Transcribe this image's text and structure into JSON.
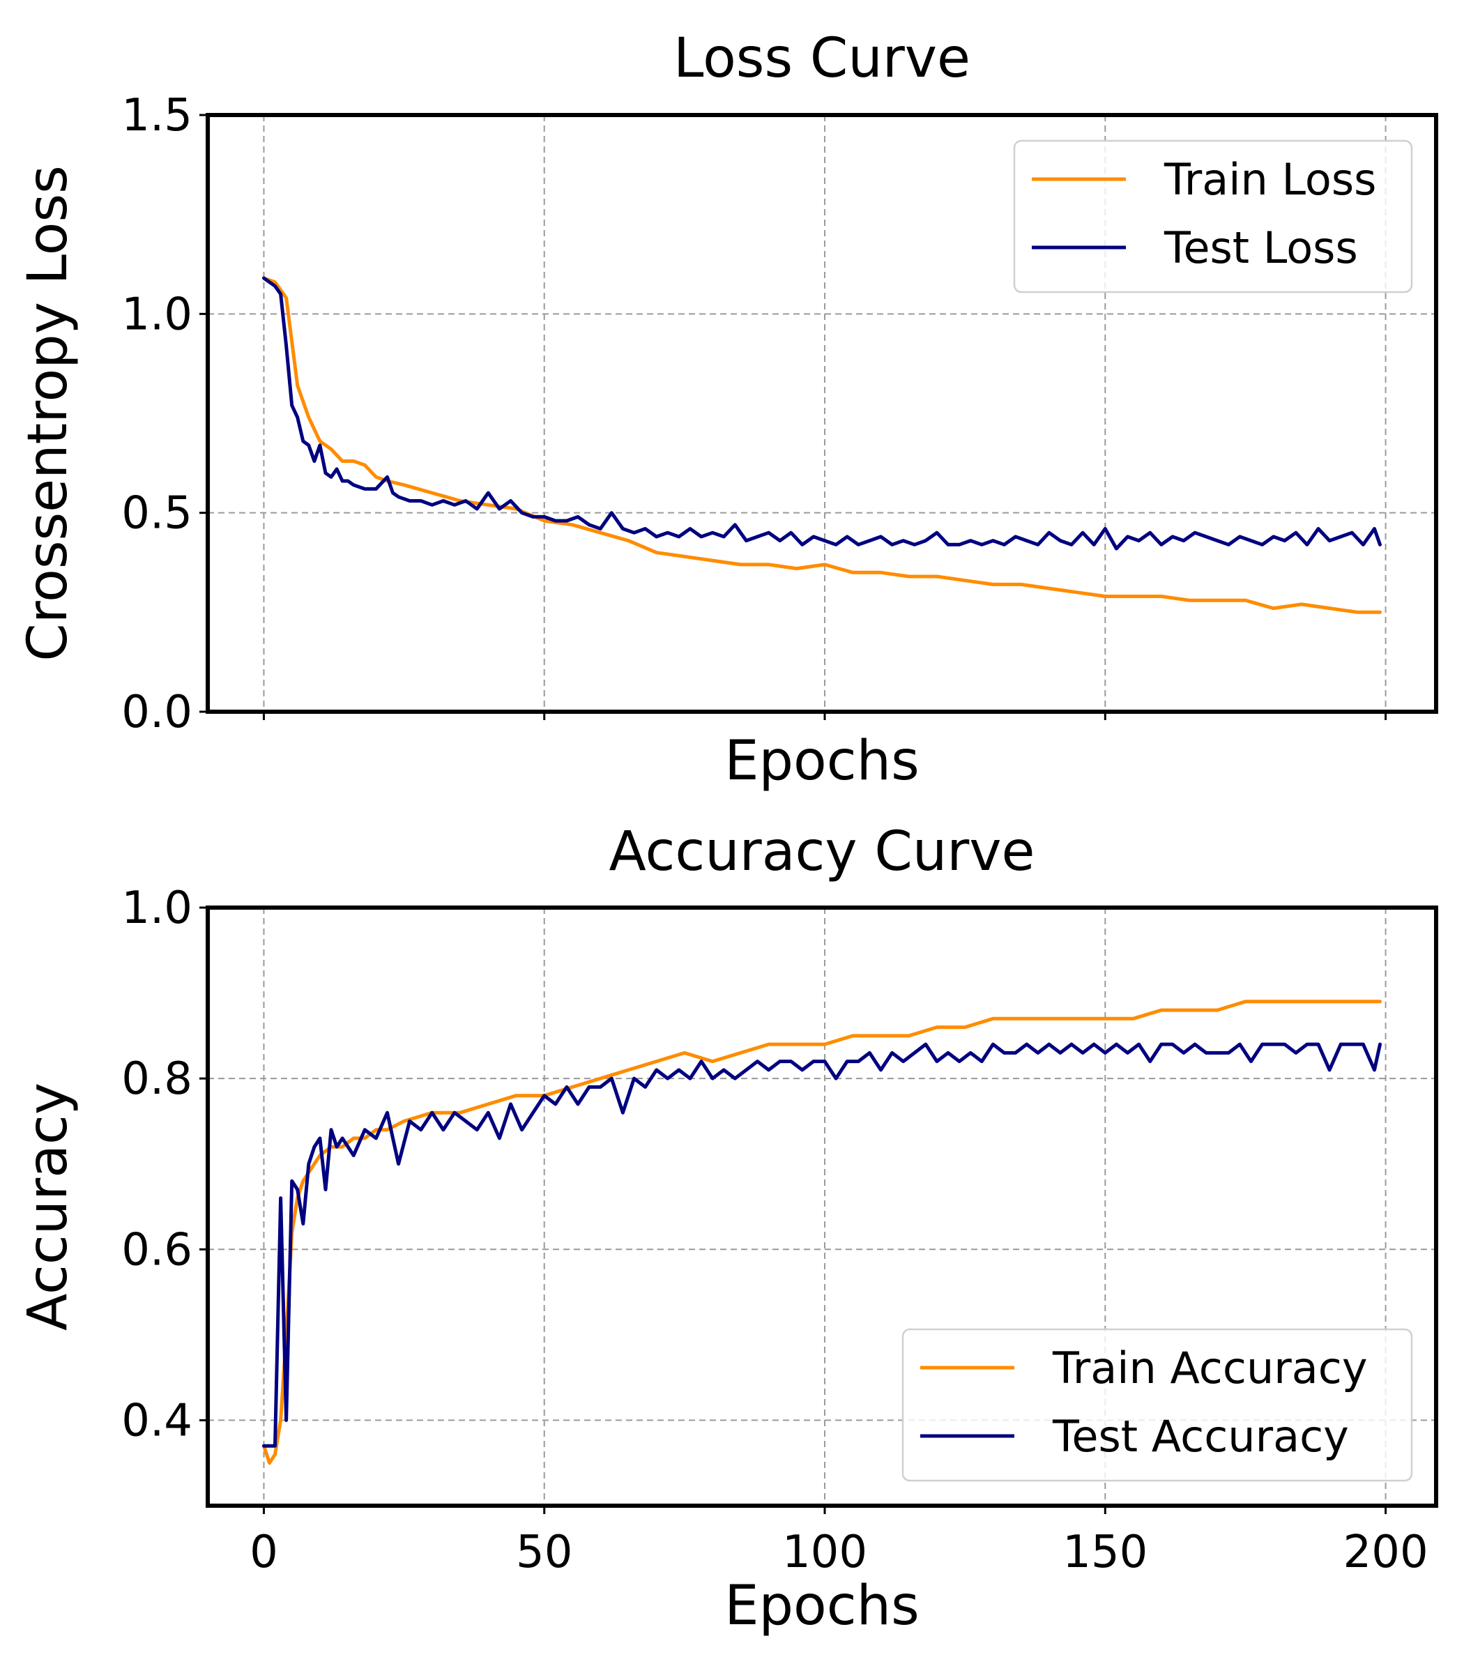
{
  "colors": {
    "train": "#ff8c00",
    "test": "#000080"
  },
  "chart_data": [
    {
      "type": "line",
      "title": "Loss Curve",
      "xlabel": "Epochs",
      "ylabel": "Crossentropy Loss",
      "xlim": [
        -10,
        209
      ],
      "ylim": [
        0.0,
        1.5
      ],
      "yticks": [
        "0.0",
        "0.5",
        "1.0",
        "1.5"
      ],
      "xticks": [
        "0",
        "50",
        "100",
        "150",
        "200"
      ],
      "show_xtick_labels": false,
      "grid": true,
      "legend_position": "top-right",
      "series": [
        {
          "name": "Train Loss",
          "color": "train",
          "x": [
            0,
            2,
            4,
            5,
            6,
            8,
            10,
            12,
            14,
            16,
            18,
            20,
            22,
            25,
            30,
            35,
            40,
            45,
            50,
            55,
            60,
            65,
            70,
            75,
            80,
            85,
            90,
            95,
            100,
            105,
            110,
            115,
            120,
            125,
            130,
            135,
            140,
            145,
            150,
            155,
            160,
            165,
            170,
            175,
            180,
            185,
            190,
            195,
            199
          ],
          "y": [
            1.09,
            1.08,
            1.04,
            0.93,
            0.82,
            0.74,
            0.68,
            0.66,
            0.63,
            0.63,
            0.62,
            0.59,
            0.58,
            0.57,
            0.55,
            0.53,
            0.52,
            0.51,
            0.48,
            0.47,
            0.45,
            0.43,
            0.4,
            0.39,
            0.38,
            0.37,
            0.37,
            0.36,
            0.37,
            0.35,
            0.35,
            0.34,
            0.34,
            0.33,
            0.32,
            0.32,
            0.31,
            0.3,
            0.29,
            0.29,
            0.29,
            0.28,
            0.28,
            0.28,
            0.26,
            0.27,
            0.26,
            0.25,
            0.25
          ]
        },
        {
          "name": "Test Loss",
          "color": "test",
          "x": [
            0,
            2,
            3,
            4,
            5,
            6,
            7,
            8,
            9,
            10,
            11,
            12,
            13,
            14,
            15,
            16,
            18,
            20,
            22,
            23,
            24,
            26,
            28,
            30,
            32,
            34,
            36,
            38,
            40,
            42,
            44,
            46,
            48,
            50,
            52,
            54,
            56,
            58,
            60,
            62,
            64,
            66,
            68,
            70,
            72,
            74,
            76,
            78,
            80,
            82,
            84,
            86,
            88,
            90,
            92,
            94,
            96,
            98,
            100,
            102,
            104,
            106,
            108,
            110,
            112,
            114,
            116,
            118,
            120,
            122,
            124,
            126,
            128,
            130,
            132,
            134,
            136,
            138,
            140,
            142,
            144,
            146,
            148,
            150,
            152,
            154,
            156,
            158,
            160,
            162,
            164,
            166,
            168,
            170,
            172,
            174,
            176,
            178,
            180,
            182,
            184,
            186,
            188,
            190,
            192,
            194,
            196,
            198,
            199
          ],
          "y": [
            1.09,
            1.07,
            1.05,
            0.92,
            0.77,
            0.74,
            0.68,
            0.67,
            0.63,
            0.67,
            0.6,
            0.59,
            0.61,
            0.58,
            0.58,
            0.57,
            0.56,
            0.56,
            0.59,
            0.55,
            0.54,
            0.53,
            0.53,
            0.52,
            0.53,
            0.52,
            0.53,
            0.51,
            0.55,
            0.51,
            0.53,
            0.5,
            0.49,
            0.49,
            0.48,
            0.48,
            0.49,
            0.47,
            0.46,
            0.5,
            0.46,
            0.45,
            0.46,
            0.44,
            0.45,
            0.44,
            0.46,
            0.44,
            0.45,
            0.44,
            0.47,
            0.43,
            0.44,
            0.45,
            0.43,
            0.45,
            0.42,
            0.44,
            0.43,
            0.42,
            0.44,
            0.42,
            0.43,
            0.44,
            0.42,
            0.43,
            0.42,
            0.43,
            0.45,
            0.42,
            0.42,
            0.43,
            0.42,
            0.43,
            0.42,
            0.44,
            0.43,
            0.42,
            0.45,
            0.43,
            0.42,
            0.45,
            0.42,
            0.46,
            0.41,
            0.44,
            0.43,
            0.45,
            0.42,
            0.44,
            0.43,
            0.45,
            0.44,
            0.43,
            0.42,
            0.44,
            0.43,
            0.42,
            0.44,
            0.43,
            0.45,
            0.42,
            0.46,
            0.43,
            0.44,
            0.45,
            0.42,
            0.46,
            0.42
          ]
        }
      ]
    },
    {
      "type": "line",
      "title": "Accuracy Curve",
      "xlabel": "Epochs",
      "ylabel": "Accuracy",
      "xlim": [
        -10,
        209
      ],
      "ylim": [
        0.3,
        1.0
      ],
      "yticks": [
        "0.4",
        "0.6",
        "0.8",
        "1.0"
      ],
      "xticks": [
        "0",
        "50",
        "100",
        "150",
        "200"
      ],
      "show_xtick_labels": true,
      "grid": true,
      "legend_position": "lower-right",
      "series": [
        {
          "name": "Train Accuracy",
          "color": "train",
          "x": [
            0,
            1,
            2,
            3,
            4,
            5,
            6,
            7,
            8,
            10,
            12,
            14,
            16,
            18,
            20,
            22,
            25,
            30,
            35,
            40,
            45,
            50,
            55,
            60,
            65,
            70,
            75,
            80,
            85,
            90,
            95,
            100,
            105,
            110,
            115,
            120,
            125,
            130,
            135,
            140,
            145,
            150,
            155,
            160,
            165,
            170,
            175,
            180,
            185,
            190,
            195,
            199
          ],
          "y": [
            0.37,
            0.35,
            0.36,
            0.4,
            0.5,
            0.62,
            0.66,
            0.68,
            0.69,
            0.71,
            0.72,
            0.72,
            0.73,
            0.73,
            0.74,
            0.74,
            0.75,
            0.76,
            0.76,
            0.77,
            0.78,
            0.78,
            0.79,
            0.8,
            0.81,
            0.82,
            0.83,
            0.82,
            0.83,
            0.84,
            0.84,
            0.84,
            0.85,
            0.85,
            0.85,
            0.86,
            0.86,
            0.87,
            0.87,
            0.87,
            0.87,
            0.87,
            0.87,
            0.88,
            0.88,
            0.88,
            0.89,
            0.89,
            0.89,
            0.89,
            0.89,
            0.89
          ]
        },
        {
          "name": "Test Accuracy",
          "color": "test",
          "x": [
            0,
            1,
            2,
            3,
            4,
            5,
            6,
            7,
            8,
            9,
            10,
            11,
            12,
            13,
            14,
            16,
            18,
            20,
            22,
            24,
            26,
            28,
            30,
            32,
            34,
            36,
            38,
            40,
            42,
            44,
            46,
            48,
            50,
            52,
            54,
            56,
            58,
            60,
            62,
            64,
            66,
            68,
            70,
            72,
            74,
            76,
            78,
            80,
            82,
            84,
            86,
            88,
            90,
            92,
            94,
            96,
            98,
            100,
            102,
            104,
            106,
            108,
            110,
            112,
            114,
            116,
            118,
            120,
            122,
            124,
            126,
            128,
            130,
            132,
            134,
            136,
            138,
            140,
            142,
            144,
            146,
            148,
            150,
            152,
            154,
            156,
            158,
            160,
            162,
            164,
            166,
            168,
            170,
            172,
            174,
            176,
            178,
            180,
            182,
            184,
            186,
            188,
            190,
            192,
            194,
            196,
            198,
            199
          ],
          "y": [
            0.37,
            0.37,
            0.37,
            0.66,
            0.4,
            0.68,
            0.67,
            0.63,
            0.7,
            0.72,
            0.73,
            0.67,
            0.74,
            0.72,
            0.73,
            0.71,
            0.74,
            0.73,
            0.76,
            0.7,
            0.75,
            0.74,
            0.76,
            0.74,
            0.76,
            0.75,
            0.74,
            0.76,
            0.73,
            0.77,
            0.74,
            0.76,
            0.78,
            0.77,
            0.79,
            0.77,
            0.79,
            0.79,
            0.8,
            0.76,
            0.8,
            0.79,
            0.81,
            0.8,
            0.81,
            0.8,
            0.82,
            0.8,
            0.81,
            0.8,
            0.81,
            0.82,
            0.81,
            0.82,
            0.82,
            0.81,
            0.82,
            0.82,
            0.8,
            0.82,
            0.82,
            0.83,
            0.81,
            0.83,
            0.82,
            0.83,
            0.84,
            0.82,
            0.83,
            0.82,
            0.83,
            0.82,
            0.84,
            0.83,
            0.83,
            0.84,
            0.83,
            0.84,
            0.83,
            0.84,
            0.83,
            0.84,
            0.83,
            0.84,
            0.83,
            0.84,
            0.82,
            0.84,
            0.84,
            0.83,
            0.84,
            0.83,
            0.83,
            0.83,
            0.84,
            0.82,
            0.84,
            0.84,
            0.84,
            0.83,
            0.84,
            0.84,
            0.81,
            0.84,
            0.84,
            0.84,
            0.81,
            0.84
          ]
        }
      ]
    }
  ]
}
